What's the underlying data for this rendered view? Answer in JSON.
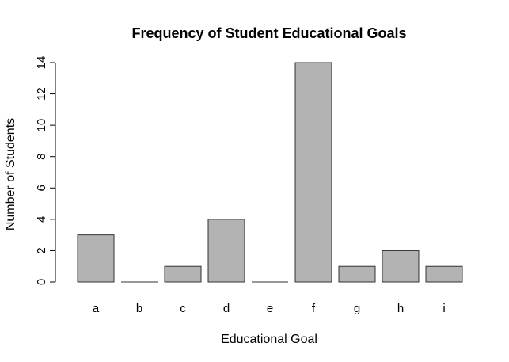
{
  "chart_data": {
    "type": "bar",
    "title": "Frequency of Student Educational Goals",
    "xlabel": "Educational Goal",
    "ylabel": "Number of Students",
    "categories": [
      "a",
      "b",
      "c",
      "d",
      "e",
      "f",
      "g",
      "h",
      "i"
    ],
    "values": [
      3,
      0,
      1,
      4,
      0,
      14,
      1,
      2,
      1
    ],
    "ylim": [
      0,
      14
    ],
    "yticks": [
      0,
      2,
      4,
      6,
      8,
      10,
      12,
      14
    ],
    "grid": false,
    "legend": "none",
    "bar_color": "#b3b3b3",
    "bar_border_color": "#333333"
  }
}
